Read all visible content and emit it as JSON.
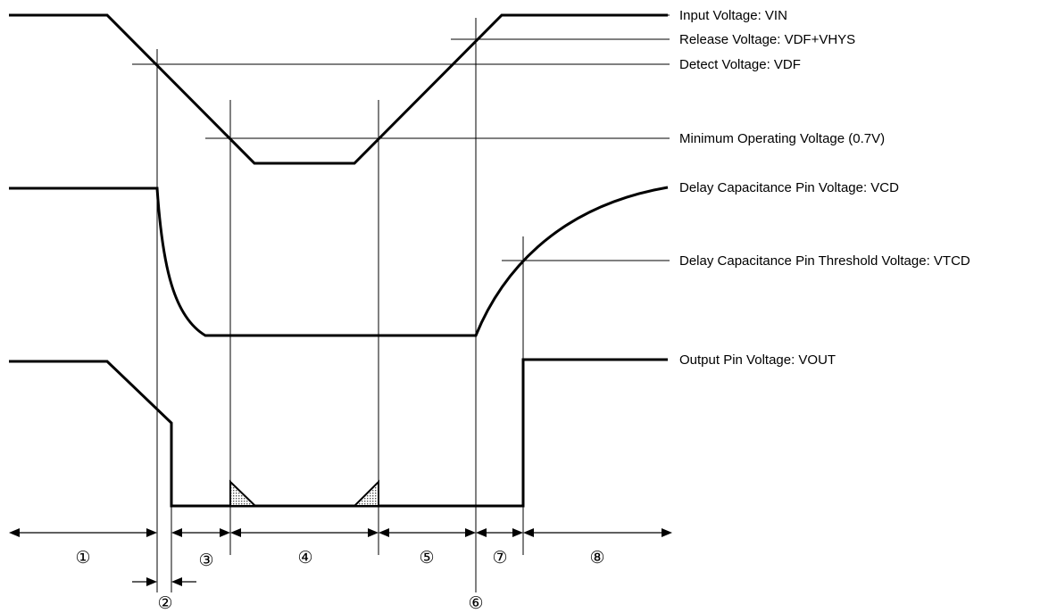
{
  "labels": {
    "vin": "Input Voltage: VIN",
    "release": "Release Voltage: VDF+VHYS",
    "detect": "Detect Voltage: VDF",
    "min_op": "Minimum Operating Voltage (0.7V)",
    "vcd": "Delay Capacitance Pin Voltage: VCD",
    "vtcd": "Delay Capacitance Pin Threshold Voltage: VTCD",
    "vout": "Output Pin Voltage: VOUT"
  },
  "segments": {
    "s1": "①",
    "s2": "②",
    "s3": "③",
    "s4": "④",
    "s5": "⑤",
    "s6": "⑥",
    "s7": "⑦",
    "s8": "⑧"
  }
}
